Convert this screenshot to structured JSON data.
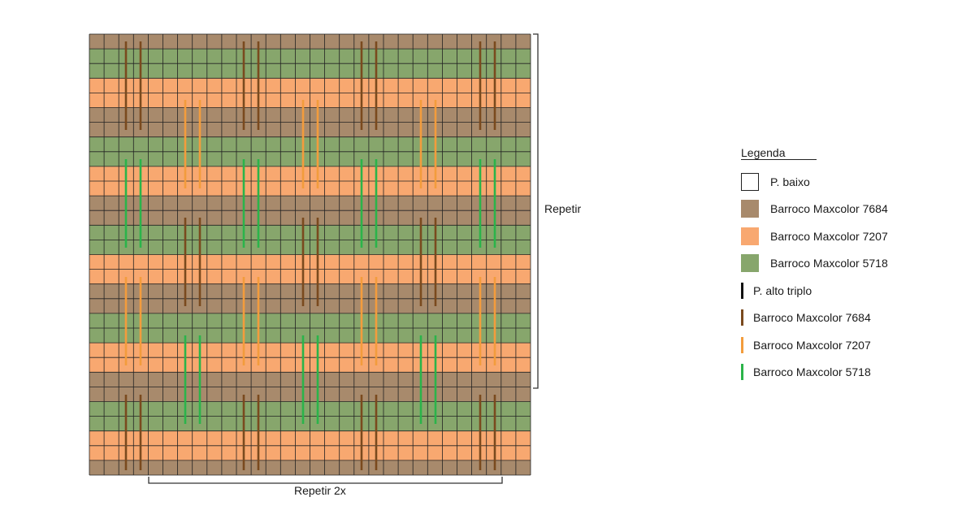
{
  "diagram": {
    "colors": {
      "brown": "#a88a6c",
      "orange": "#f8a870",
      "green": "#87a66c",
      "grid_line": "#222222",
      "stitch_brown": "#7a4a1e",
      "stitch_orange": "#f39c3c",
      "stitch_green": "#2bb44a"
    },
    "grid": {
      "columns": 30,
      "rows": 30,
      "row_color_sequence": [
        "brown",
        "green",
        "green",
        "orange",
        "orange",
        "brown",
        "brown",
        "green",
        "green",
        "orange",
        "orange",
        "brown",
        "brown",
        "green",
        "green",
        "orange",
        "orange",
        "brown",
        "brown",
        "green",
        "green",
        "orange",
        "orange",
        "brown",
        "brown",
        "green",
        "green",
        "orange",
        "orange",
        "brown"
      ]
    },
    "repeat_vertical_label": "Repetir",
    "repeat_horizontal_label": "Repetir 2x"
  },
  "legend": {
    "title": "Legenda",
    "items": [
      {
        "kind": "swatch-outline",
        "label": "P. baixo",
        "color": "#ffffff"
      },
      {
        "kind": "swatch",
        "label": "Barroco Maxcolor 7684",
        "color": "#a88a6c"
      },
      {
        "kind": "swatch",
        "label": "Barroco Maxcolor 7207",
        "color": "#f8a870"
      },
      {
        "kind": "swatch",
        "label": "Barroco Maxcolor 5718",
        "color": "#87a66c"
      },
      {
        "kind": "bar",
        "label": "P. alto triplo",
        "color": "#111111"
      },
      {
        "kind": "bar",
        "label": "Barroco Maxcolor 7684",
        "color": "#7a4a1e"
      },
      {
        "kind": "bar",
        "label": "Barroco Maxcolor 7207",
        "color": "#f39c3c"
      },
      {
        "kind": "bar",
        "label": "Barroco Maxcolor 5718",
        "color": "#2bb44a"
      }
    ]
  }
}
